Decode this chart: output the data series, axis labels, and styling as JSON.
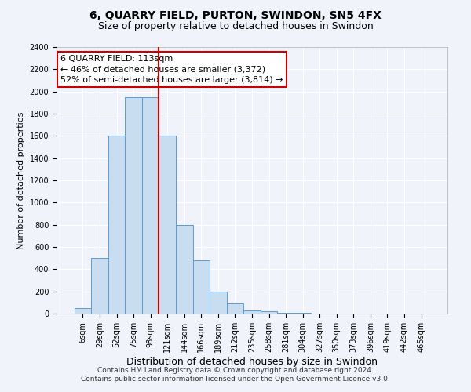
{
  "title": "6, QUARRY FIELD, PURTON, SWINDON, SN5 4FX",
  "subtitle": "Size of property relative to detached houses in Swindon",
  "xlabel": "Distribution of detached houses by size in Swindon",
  "ylabel": "Number of detached properties",
  "categories": [
    "6sqm",
    "29sqm",
    "52sqm",
    "75sqm",
    "98sqm",
    "121sqm",
    "144sqm",
    "166sqm",
    "189sqm",
    "212sqm",
    "235sqm",
    "258sqm",
    "281sqm",
    "304sqm",
    "327sqm",
    "350sqm",
    "373sqm",
    "396sqm",
    "419sqm",
    "442sqm",
    "465sqm"
  ],
  "values": [
    50,
    500,
    1600,
    1950,
    1950,
    1600,
    800,
    480,
    200,
    90,
    30,
    20,
    10,
    5,
    0,
    0,
    0,
    0,
    0,
    0,
    0
  ],
  "bar_color": "#c8ddf0",
  "bar_edge_color": "#5b9bd5",
  "vline_x": 4.5,
  "vline_color": "#cc0000",
  "annotation_line1": "6 QUARRY FIELD: 113sqm",
  "annotation_line2": "← 46% of detached houses are smaller (3,372)",
  "annotation_line3": "52% of semi-detached houses are larger (3,814) →",
  "annotation_box_facecolor": "#ffffff",
  "annotation_box_edgecolor": "#cc0000",
  "ylim": [
    0,
    2400
  ],
  "yticks": [
    0,
    200,
    400,
    600,
    800,
    1000,
    1200,
    1400,
    1600,
    1800,
    2000,
    2200,
    2400
  ],
  "footer1": "Contains HM Land Registry data © Crown copyright and database right 2024.",
  "footer2": "Contains public sector information licensed under the Open Government Licence v3.0.",
  "fig_facecolor": "#f0f4fa",
  "axes_facecolor": "#f0f4fa",
  "grid_color": "#ffffff",
  "title_fontsize": 10,
  "subtitle_fontsize": 9,
  "tick_fontsize": 7,
  "ylabel_fontsize": 8,
  "xlabel_fontsize": 9,
  "annotation_fontsize": 8,
  "footer_fontsize": 6.5
}
